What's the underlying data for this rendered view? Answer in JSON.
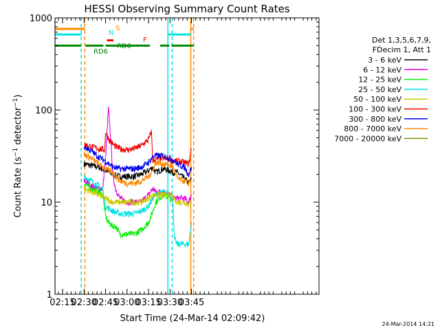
{
  "chart_data": {
    "type": "line",
    "title": "HESSI Observing Summary Count Rates",
    "xlabel": "Start Time (24-Mar-14 02:09:42)",
    "ylabel": "Count Rate (s",
    "ylabel_sup1": "−1",
    "ylabel_mid": " detector",
    "ylabel_sup2": "−1",
    "ylabel_end": ")",
    "yscale": "log",
    "ylim": [
      1,
      1000
    ],
    "xlim": [
      9.7,
      194
    ],
    "x_unit": "minutes since 02:00",
    "x_ticks": [
      {
        "v": 15,
        "label": "02:15"
      },
      {
        "v": 30,
        "label": "02:30"
      },
      {
        "v": 45,
        "label": "02:45"
      },
      {
        "v": 60,
        "label": "03:00"
      },
      {
        "v": 75,
        "label": "03:15"
      },
      {
        "v": 90,
        "label": "03:30"
      },
      {
        "v": 105,
        "label": "03:45"
      }
    ],
    "y_ticks": [
      {
        "v": 1,
        "label": "1"
      },
      {
        "v": 10,
        "label": "10"
      },
      {
        "v": 100,
        "label": "100"
      },
      {
        "v": 1000,
        "label": "1000"
      }
    ],
    "legend_title": [
      "Det 1,3,5,6,7,9,",
      "FDecim 1, Att 1"
    ],
    "timestamp": "24-Mar-2014 14:21",
    "series": [
      {
        "name": "3 - 6 keV",
        "color": "#000000",
        "x": [
          30,
          35,
          40,
          45,
          50,
          55,
          60,
          65,
          70,
          75,
          78,
          80,
          85,
          90,
          92,
          95,
          100,
          103,
          105
        ],
        "y": [
          26,
          25,
          24,
          22,
          20,
          19,
          19,
          19,
          20,
          22,
          24,
          21,
          23,
          22,
          21,
          21,
          18,
          16,
          18
        ]
      },
      {
        "name": "6 - 12 keV",
        "color": "#e000e0",
        "x": [
          30,
          35,
          40,
          43,
          45,
          47,
          49,
          50,
          52,
          55,
          60,
          65,
          70,
          75,
          78,
          80,
          85,
          90,
          92,
          95,
          100,
          103,
          105
        ],
        "y": [
          17,
          15,
          14,
          14,
          30,
          105,
          40,
          20,
          14,
          11,
          10,
          10,
          10,
          12,
          14,
          13,
          13,
          12,
          11,
          11,
          11,
          10,
          12
        ]
      },
      {
        "name": "12 - 25 keV",
        "color": "#00ee00",
        "x": [
          30,
          35,
          40,
          43,
          45,
          47,
          50,
          52,
          55,
          60,
          65,
          70,
          75,
          78,
          80,
          85,
          90,
          92
        ],
        "y": [
          16,
          14,
          13,
          12,
          7,
          6,
          5.5,
          5.5,
          4.5,
          4.5,
          4.5,
          5,
          6,
          8,
          10,
          12,
          11,
          10
        ]
      },
      {
        "name": "25 - 50 keV",
        "color": "#00e0e0",
        "x": [
          30,
          35,
          40,
          43,
          45,
          50,
          55,
          60,
          65,
          70,
          75,
          78,
          80,
          85,
          90,
          92,
          93,
          95,
          100,
          103,
          105
        ],
        "y": [
          19,
          17,
          15,
          14,
          9,
          8,
          7.5,
          7.5,
          7.5,
          8,
          9,
          11,
          12,
          13,
          12,
          11,
          4,
          3.5,
          3.5,
          3.5,
          6
        ]
      },
      {
        "name": "50 - 100 keV",
        "color": "#cccc00",
        "x": [
          30,
          35,
          40,
          45,
          50,
          55,
          60,
          65,
          70,
          75,
          78,
          80,
          85,
          90,
          92,
          95,
          100,
          103,
          105
        ],
        "y": [
          14,
          13,
          12,
          11,
          10,
          10,
          10,
          10,
          10,
          11,
          12,
          12,
          12,
          12,
          11,
          10,
          10,
          9.5,
          10
        ]
      },
      {
        "name": "100 - 300 keV",
        "color": "#ee0000",
        "x": [
          30,
          35,
          40,
          44.5,
          45,
          48,
          52,
          55,
          60,
          65,
          70,
          75,
          77,
          78,
          80,
          85,
          90,
          92,
          95,
          100,
          103,
          105
        ],
        "y": [
          42,
          40,
          38,
          37,
          58,
          46,
          40,
          38,
          37,
          38,
          41,
          48,
          58,
          28,
          29,
          30,
          29,
          28,
          28,
          27,
          26,
          38
        ]
      },
      {
        "name": "300 - 800 keV",
        "color": "#0000ee",
        "x": [
          30,
          35,
          40,
          45,
          50,
          55,
          60,
          65,
          70,
          75,
          78,
          80,
          85,
          90,
          92,
          95,
          100,
          103,
          105
        ],
        "y": [
          40,
          36,
          31,
          28,
          24,
          23,
          23,
          23,
          24,
          27,
          31,
          32,
          32,
          30,
          29,
          26,
          24,
          20,
          24
        ]
      },
      {
        "name": "800 - 7000 keV",
        "color": "#ff8800",
        "x": [
          30,
          35,
          40,
          45,
          50,
          55,
          60,
          65,
          70,
          75,
          78,
          80,
          85,
          90,
          92,
          95,
          100,
          103,
          105
        ],
        "y": [
          33,
          30,
          26,
          23,
          21,
          17,
          16,
          16,
          17,
          19,
          22,
          27,
          26,
          25,
          24,
          18,
          17,
          16,
          18
        ]
      },
      {
        "name": "7000 - 20000 keV",
        "color": "#888800",
        "x": [],
        "y": []
      }
    ],
    "flags": [
      {
        "label": "S",
        "color": "#ff8800",
        "level": 760,
        "segments": [
          [
            9.7,
            30.5
          ],
          [
            104.5,
            106.5
          ]
        ]
      },
      {
        "label": "N",
        "color": "#00e0e0",
        "level": 660,
        "segments": [
          [
            9.7,
            28
          ],
          [
            88.5,
            104.5
          ]
        ]
      },
      {
        "label": "F",
        "color": "#ee0000",
        "level": 570,
        "segments": [
          [
            46,
            50.5
          ]
        ]
      },
      {
        "label": "RD0",
        "color": "#008800",
        "level": 500,
        "segments": [
          [
            9.7,
            28
          ],
          [
            31,
            43.5
          ],
          [
            45,
            76
          ],
          [
            83,
            89.5
          ],
          [
            91,
            106.5
          ]
        ]
      },
      {
        "label": "RD6",
        "color": "#008800",
        "level": 500,
        "segments": []
      }
    ],
    "markers": [
      {
        "x": 9.7,
        "color": "#00e0e0",
        "style": "solid"
      },
      {
        "x": 28,
        "color": "#00e0e0",
        "style": "dashed"
      },
      {
        "x": 30.5,
        "color": "#ff8800",
        "style": "dashed"
      },
      {
        "x": 88.5,
        "color": "#00e0e0",
        "style": "solid"
      },
      {
        "x": 91.5,
        "color": "#00e0e0",
        "style": "dashed"
      },
      {
        "x": 104.5,
        "color": "#ff8800",
        "style": "solid"
      },
      {
        "x": 106.5,
        "color": "#ff8800",
        "style": "dashed"
      }
    ]
  }
}
